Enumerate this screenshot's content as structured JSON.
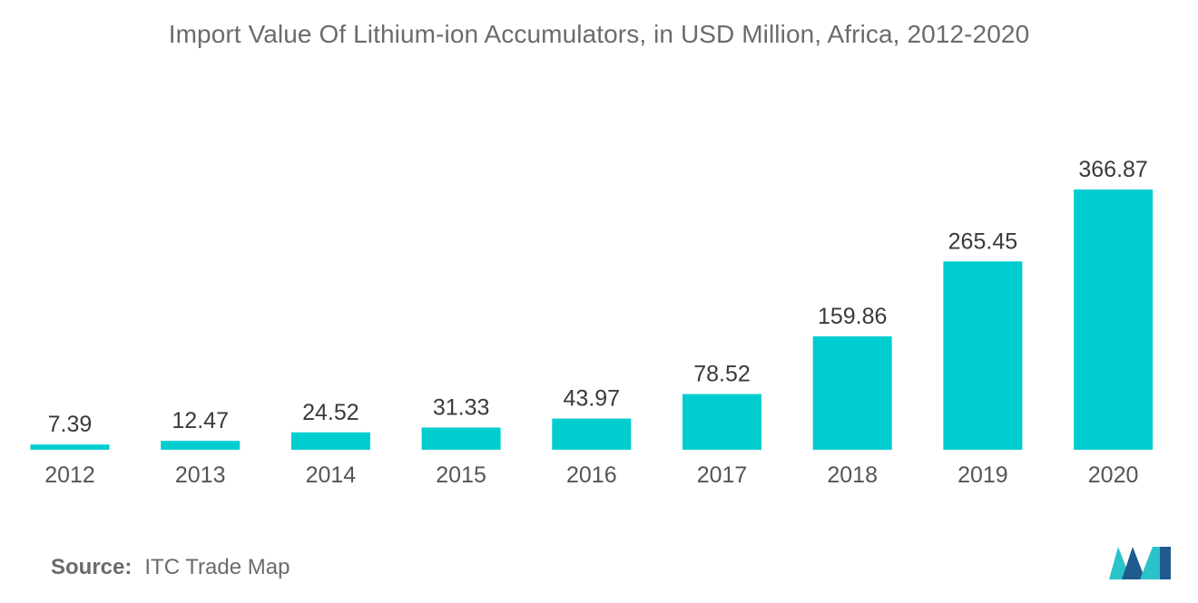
{
  "title": "Import Value Of Lithium-ion Accumulators, in USD Million, Africa, 2012-2020",
  "source": {
    "label": "Source:",
    "text": "ITC Trade Map"
  },
  "colors": {
    "bar": "#00cdd0",
    "logo_dark": "#1f5b8f",
    "logo_light": "#2bc3c8"
  },
  "chart_data": {
    "type": "bar",
    "title": "Import Value Of Lithium-ion Accumulators, in USD Million, Africa, 2012-2020",
    "categories": [
      "2012",
      "2013",
      "2014",
      "2015",
      "2016",
      "2017",
      "2018",
      "2019",
      "2020"
    ],
    "values": [
      7.39,
      12.47,
      24.52,
      31.33,
      43.97,
      78.52,
      159.86,
      265.45,
      366.87
    ],
    "value_labels": [
      "7.39",
      "12.47",
      "24.52",
      "31.33",
      "43.97",
      "78.52",
      "159.86",
      "265.45",
      "366.87"
    ],
    "xlabel": "",
    "ylabel": "",
    "ylim": [
      0,
      370
    ],
    "grid": false,
    "legend": "none",
    "y_axis_visible": false
  }
}
